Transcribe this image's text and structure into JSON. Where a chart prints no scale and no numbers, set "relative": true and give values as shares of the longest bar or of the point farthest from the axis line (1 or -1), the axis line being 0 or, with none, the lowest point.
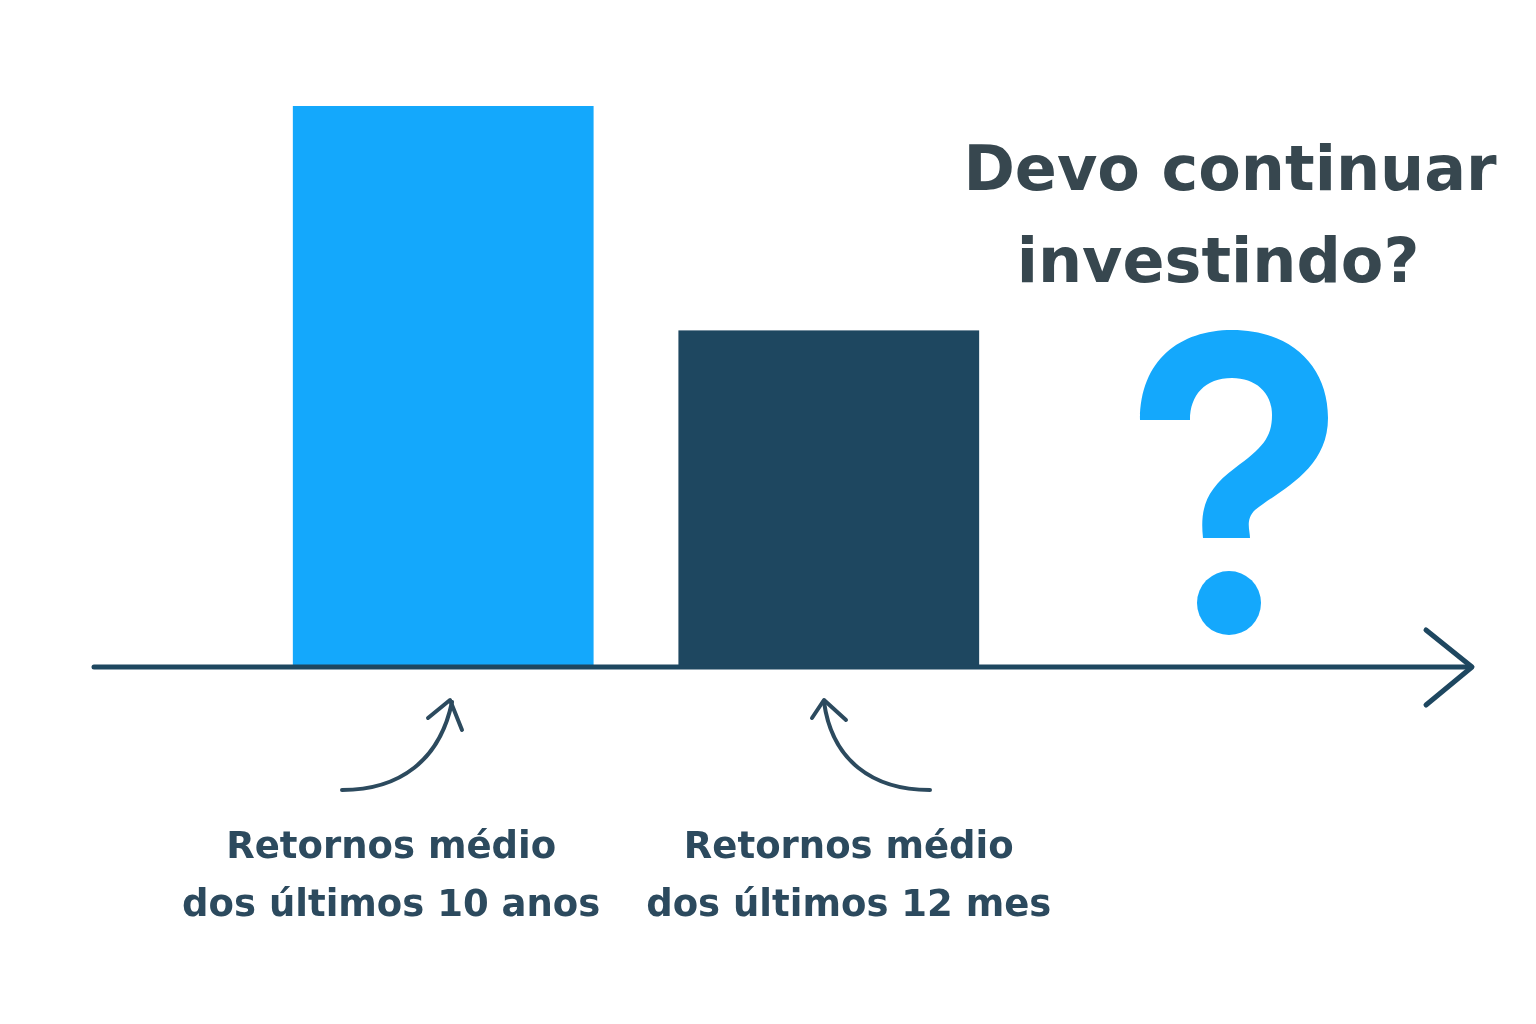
{
  "chart_data": {
    "type": "bar",
    "title": "Devo continuar investindo?",
    "relative": true,
    "categories": [
      "Retornos médio\ndos últimos 10 anos",
      "Retornos médio\ndos últimos 12 mes"
    ],
    "values": [
      1,
      0.6
    ],
    "colors": [
      "#14a8fc",
      "#1e4760"
    ]
  }
}
